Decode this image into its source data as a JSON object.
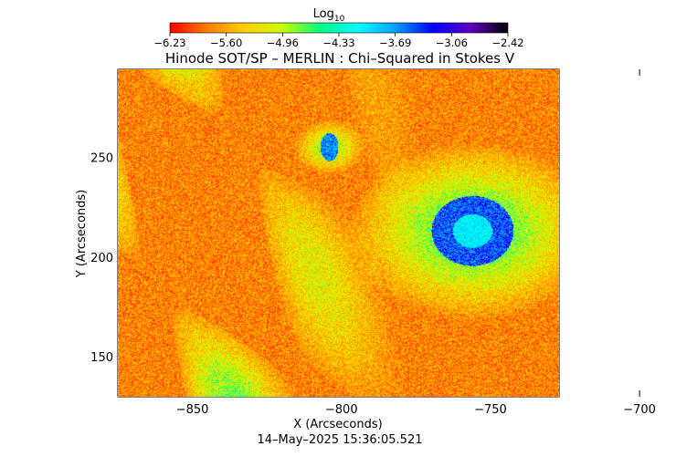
{
  "chart_data": {
    "type": "heatmap",
    "title": "Hinode SOT/SP – MERLIN : Chi–Squared in Stokes V",
    "colorbar": {
      "label": "Log",
      "label_subscript": "10",
      "tick_labels": [
        "−6.23",
        "−5.60",
        "−4.96",
        "−4.33",
        "−3.69",
        "−3.06",
        "−2.42"
      ],
      "range": [
        -6.23,
        -2.42
      ],
      "colormap": [
        "#ff0000",
        "#ff8000",
        "#ffd000",
        "#c8ff00",
        "#00ff80",
        "#00ffff",
        "#00a0ff",
        "#0000ff",
        "#6000c0",
        "#000000"
      ]
    },
    "xlabel": "X (Arcseconds)",
    "ylabel": "Y (Arcseconds)",
    "xlim": [
      -875,
      -727
    ],
    "ylim": [
      130,
      294
    ],
    "x_ticks": [
      -850,
      -800,
      -750,
      -700
    ],
    "y_ticks": [
      150,
      200,
      250
    ],
    "x_tick_labels": [
      "−850",
      "−800",
      "−750",
      "−700"
    ],
    "y_tick_labels": [
      "150",
      "200",
      "250"
    ],
    "features": [
      {
        "name": "sunspot",
        "center": [
          -756,
          213
        ],
        "value_range": [
          -3.9,
          -3.0
        ]
      },
      {
        "name": "pore",
        "center": [
          -804,
          255
        ],
        "value_range": [
          -4.0,
          -3.3
        ]
      }
    ],
    "background_value_range": [
      -6.1,
      -5.4
    ],
    "grid": false
  },
  "timestamp": "14–May–2025 15:36:05.521"
}
